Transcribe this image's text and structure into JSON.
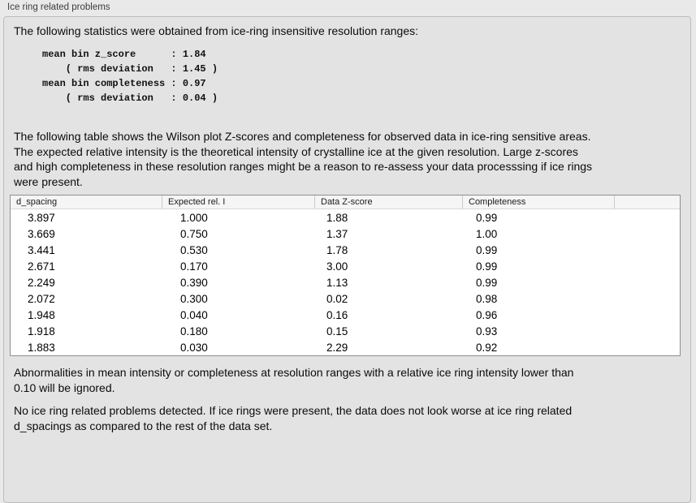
{
  "group": {
    "title": "Ice ring related problems"
  },
  "intro": "The following statistics were obtained from ice-ring insensitive resolution ranges:",
  "stats_block": "mean bin z_score      : 1.84\n    ( rms deviation   : 1.45 )\nmean bin completeness : 0.97\n    ( rms deviation   : 0.04 )",
  "stats": {
    "mean_bin_z_score": "1.84",
    "z_score_rms_deviation": "1.45",
    "mean_bin_completeness": "0.97",
    "completeness_rms_deviation": "0.04"
  },
  "description": "The following table shows the Wilson plot Z-scores and completeness for observed data in ice-ring sensitive areas.\nThe expected relative intensity is the theoretical intensity of crystalline ice at the given resolution. Large z-scores\nand high completeness in these resolution ranges might be a reason to re-assess your data processsing if ice rings\nwere present.",
  "table": {
    "headers": [
      "d_spacing",
      "Expected rel. I",
      "Data Z-score",
      "Completeness",
      ""
    ],
    "rows": [
      [
        "3.897",
        "1.000",
        "1.88",
        "0.99"
      ],
      [
        "3.669",
        "0.750",
        "1.37",
        "1.00"
      ],
      [
        "3.441",
        "0.530",
        "1.78",
        "0.99"
      ],
      [
        "2.671",
        "0.170",
        "3.00",
        "0.99"
      ],
      [
        "2.249",
        "0.390",
        "1.13",
        "0.99"
      ],
      [
        "2.072",
        "0.300",
        "0.02",
        "0.98"
      ],
      [
        "1.948",
        "0.040",
        "0.16",
        "0.96"
      ],
      [
        "1.918",
        "0.180",
        "0.15",
        "0.93"
      ],
      [
        "1.883",
        "0.030",
        "2.29",
        "0.92"
      ]
    ]
  },
  "note_ignore": "Abnormalities in mean intensity or completeness at resolution ranges with a relative ice ring intensity lower than\n0.10 will be ignored.",
  "conclusion": "No ice ring related problems detected. If ice rings were present, the data does not look worse at ice ring related\nd_spacings as compared to the rest of the data set.",
  "colors": {
    "page_background": "#e9e9e9",
    "groupbox_background": "#e3e3e3",
    "groupbox_border": "#bdbdbd",
    "table_border": "#8e8e8e",
    "table_header_background": "#f5f5f5",
    "text": "#0b0b0b"
  }
}
